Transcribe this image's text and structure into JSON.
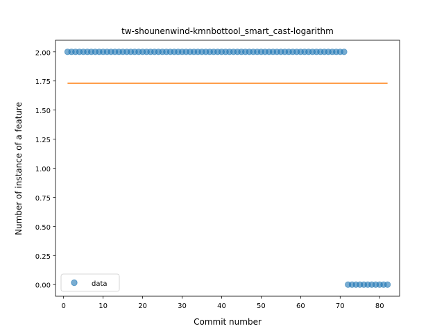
{
  "chart_data": {
    "type": "scatter",
    "title": "tw-shounenwind-kmnbottool_smart_cast-logarithm",
    "xlabel": "Commit number",
    "ylabel": "Number of instance of a feature",
    "xlim": [
      -2.05,
      85.05
    ],
    "ylim": [
      -0.1,
      2.1
    ],
    "xticks": [
      0,
      10,
      20,
      30,
      40,
      50,
      60,
      70,
      80
    ],
    "yticks": [
      0.0,
      0.25,
      0.5,
      0.75,
      1.0,
      1.25,
      1.5,
      1.75,
      2.0
    ],
    "xtick_labels": [
      "0",
      "10",
      "20",
      "30",
      "40",
      "50",
      "60",
      "70",
      "80"
    ],
    "ytick_labels": [
      "0.00",
      "0.25",
      "0.50",
      "0.75",
      "1.00",
      "1.25",
      "1.50",
      "1.75",
      "2.00"
    ],
    "series": [
      {
        "name": "data",
        "kind": "scatter",
        "color": "#1f77b4",
        "points": [
          {
            "x_from": 1,
            "x_to": 71,
            "y": 2.0
          },
          {
            "x_from": 72,
            "x_to": 82,
            "y": 0.0
          }
        ]
      },
      {
        "kind": "line",
        "color": "#ff7f0e",
        "x": [
          1,
          82
        ],
        "y": [
          1.73,
          1.73
        ]
      }
    ],
    "legend": {
      "position": "lower-left",
      "entries": [
        "data"
      ]
    },
    "grid": false
  }
}
